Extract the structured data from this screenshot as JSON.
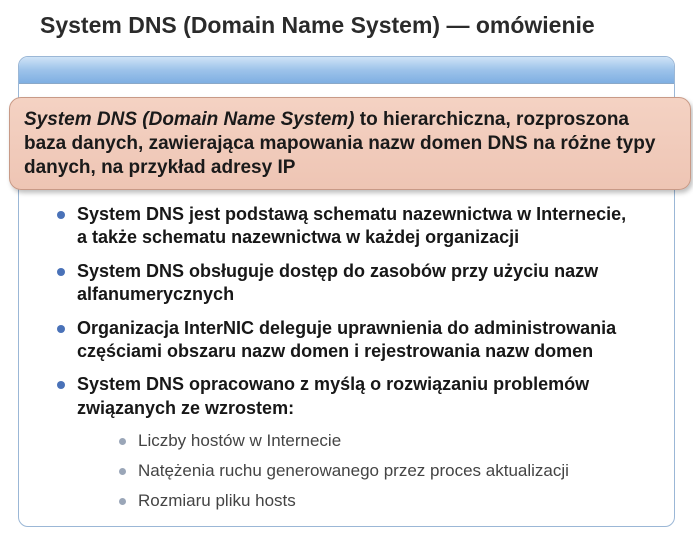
{
  "title": "System DNS (Domain Name System) — omówienie",
  "callout": {
    "lead_bi": "System DNS (Domain Name System)",
    "rest_b": " to hierarchiczna, rozproszona baza danych, zawierająca mapowania nazw domen DNS na różne typy danych, na przykład adresy IP"
  },
  "bullets": [
    "System DNS jest podstawą schematu nazewnictwa w Internecie, a także schematu nazewnictwa w każdej organizacji",
    "System DNS obsługuje dostęp do zasobów przy użyciu nazw alfanumerycznych",
    "Organizacja InterNIC deleguje uprawnienia do administrowania częściami obszaru nazw domen i rejestrowania nazw domen",
    "System DNS opracowano z myślą o rozwiązaniu problemów związanych ze wzrostem:"
  ],
  "sub_bullets": [
    "Liczby hostów w Internecie",
    "Natężenia ruchu generowanego przez proces aktualizacji",
    "Rozmiaru pliku hosts"
  ],
  "colors": {
    "primary_bullet": "#4a72b8",
    "sub_bullet": "#9aa6b8",
    "callout_bg_top": "#f4d2c3",
    "callout_bg_bottom": "#eec5b4",
    "callout_border": "#c89a87",
    "box_border": "#9bb7d6",
    "header_top": "#cfe3f7",
    "header_mid": "#9dc3ea",
    "header_bot": "#7fafe2"
  }
}
